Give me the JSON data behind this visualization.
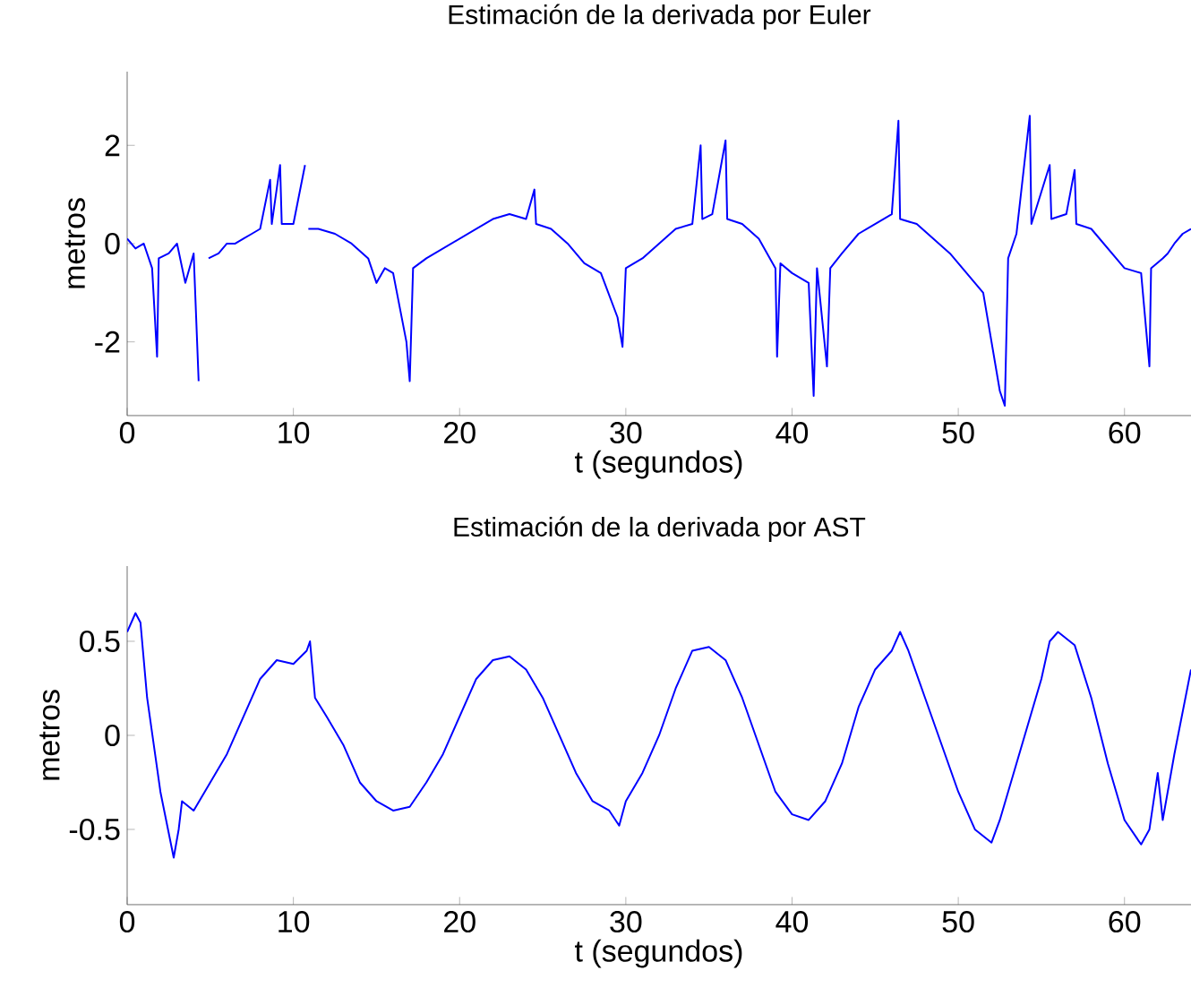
{
  "chart_data": [
    {
      "type": "line",
      "title": "Estimación de la derivada por Euler",
      "xlabel": "t (segundos)",
      "ylabel": "metros",
      "color": "#0000ff",
      "xlim": [
        0,
        64
      ],
      "ylim": [
        -3.5,
        3.5
      ],
      "xticks": [
        0,
        10,
        20,
        30,
        40,
        50,
        60
      ],
      "yticks": [
        -2,
        0,
        2
      ],
      "x": [
        0,
        0.5,
        1.0,
        1.5,
        1.8,
        1.9,
        2.5,
        3.0,
        3.5,
        4.0,
        4.3,
        4.5,
        4.8,
        4.9,
        5.5,
        6.0,
        6.5,
        7.0,
        7.5,
        8.0,
        8.6,
        8.7,
        9.2,
        9.3,
        10.0,
        10.7,
        10.8,
        10.9,
        11.5,
        12.5,
        13.5,
        14.5,
        15,
        15.5,
        16,
        16.8,
        17.0,
        17.2,
        18,
        19,
        20,
        21,
        22,
        23,
        24,
        24.5,
        24.6,
        25.5,
        26.5,
        27.5,
        28.5,
        29.5,
        29.8,
        30.0,
        31,
        32,
        33,
        34,
        34.5,
        34.6,
        35.2,
        36.0,
        36.1,
        37,
        38,
        39,
        39.1,
        39.3,
        40,
        41,
        41.3,
        41.5,
        42.1,
        42.3,
        43,
        44,
        45,
        46,
        46.4,
        46.5,
        47.5,
        48.5,
        49.5,
        50.5,
        51.5,
        52.5,
        52.8,
        53.0,
        53.5,
        54.3,
        54.4,
        55.5,
        55.6,
        56.5,
        57,
        57.1,
        58,
        59,
        60,
        61,
        61.5,
        61.6,
        62.3,
        62.6,
        63,
        63.5,
        64
      ],
      "values": [
        0.1,
        -0.1,
        0,
        -0.5,
        -2.3,
        -0.3,
        -0.2,
        0.0,
        -0.8,
        -0.2,
        -2.8,
        null,
        null,
        -0.3,
        -0.2,
        0.0,
        0.0,
        0.1,
        0.2,
        0.3,
        1.3,
        0.4,
        1.6,
        0.4,
        0.4,
        1.6,
        null,
        0.3,
        0.3,
        0.2,
        0.0,
        -0.3,
        -0.8,
        -0.5,
        -0.6,
        -2.0,
        -2.8,
        -0.5,
        -0.3,
        -0.1,
        0.1,
        0.3,
        0.5,
        0.6,
        0.5,
        1.1,
        0.4,
        0.3,
        0.0,
        -0.4,
        -0.6,
        -1.5,
        -2.1,
        -0.5,
        -0.3,
        0.0,
        0.3,
        0.4,
        2.0,
        0.5,
        0.6,
        2.1,
        0.5,
        0.4,
        0.1,
        -0.5,
        -2.3,
        -0.4,
        -0.6,
        -0.8,
        -3.1,
        -0.5,
        -2.5,
        -0.5,
        -0.2,
        0.2,
        0.4,
        0.6,
        2.5,
        0.5,
        0.4,
        0.1,
        -0.2,
        -0.6,
        -1.0,
        -3.0,
        -3.3,
        -0.3,
        0.2,
        2.6,
        0.4,
        1.6,
        0.5,
        0.6,
        1.5,
        0.4,
        0.3,
        -0.1,
        -0.5,
        -0.6,
        -2.5,
        -0.5,
        -0.3,
        -0.2,
        0.0,
        0.2,
        0.3
      ]
    },
    {
      "type": "line",
      "title": "Estimación de la derivada por AST",
      "xlabel": "t (segundos)",
      "ylabel": "metros",
      "color": "#0000ff",
      "xlim": [
        0,
        64
      ],
      "ylim": [
        -0.9,
        0.9
      ],
      "xticks": [
        0,
        10,
        20,
        30,
        40,
        50,
        60
      ],
      "yticks": [
        -0.5,
        0,
        0.5
      ],
      "x": [
        0,
        0.5,
        0.8,
        1.2,
        2,
        2.8,
        3.1,
        3.3,
        4,
        5,
        6,
        7,
        8,
        9,
        10,
        10.8,
        11.0,
        11.3,
        12,
        13,
        14,
        15,
        16,
        17,
        18,
        19,
        20,
        21,
        22,
        23,
        24,
        25,
        26,
        27,
        28,
        29,
        29.6,
        30,
        31,
        32,
        33,
        34,
        35,
        36,
        37,
        38,
        39,
        40,
        41,
        42,
        43,
        44,
        45,
        46,
        46.5,
        47,
        48,
        49,
        50,
        51,
        52,
        52.5,
        53,
        54,
        55,
        55.5,
        56,
        57,
        58,
        59,
        60,
        61,
        61.5,
        62,
        62.3,
        63,
        64
      ],
      "values": [
        0.55,
        0.65,
        0.6,
        0.2,
        -0.3,
        -0.65,
        -0.5,
        -0.35,
        -0.4,
        -0.25,
        -0.1,
        0.1,
        0.3,
        0.4,
        0.38,
        0.45,
        0.5,
        0.2,
        0.1,
        -0.05,
        -0.25,
        -0.35,
        -0.4,
        -0.38,
        -0.25,
        -0.1,
        0.1,
        0.3,
        0.4,
        0.42,
        0.35,
        0.2,
        0.0,
        -0.2,
        -0.35,
        -0.4,
        -0.48,
        -0.35,
        -0.2,
        0.0,
        0.25,
        0.45,
        0.47,
        0.4,
        0.2,
        -0.05,
        -0.3,
        -0.42,
        -0.45,
        -0.35,
        -0.15,
        0.15,
        0.35,
        0.45,
        0.55,
        0.45,
        0.2,
        -0.05,
        -0.3,
        -0.5,
        -0.57,
        -0.45,
        -0.3,
        0.0,
        0.3,
        0.5,
        0.55,
        0.48,
        0.2,
        -0.15,
        -0.45,
        -0.58,
        -0.5,
        -0.2,
        -0.45,
        -0.1,
        0.35
      ]
    }
  ]
}
